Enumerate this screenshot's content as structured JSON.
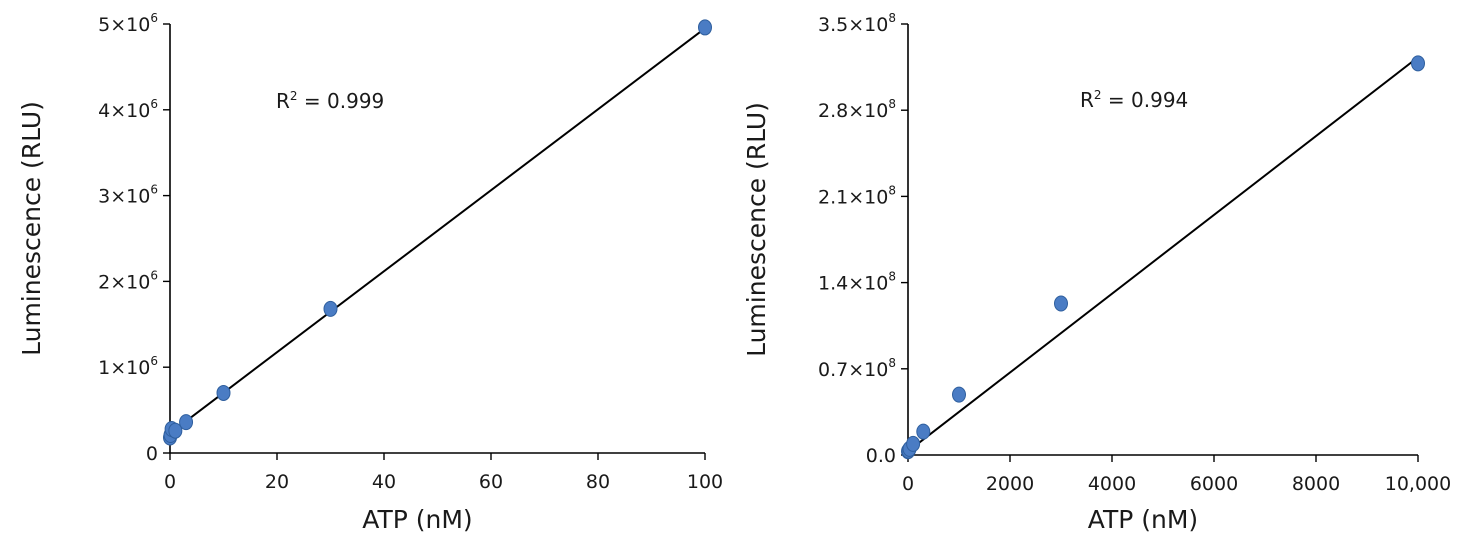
{
  "chart_data": [
    {
      "type": "scatter",
      "xlabel": "ATP (nM)",
      "ylabel": "Luminescence (RLU)",
      "xlim": [
        0,
        100
      ],
      "ylim": [
        0,
        5000000
      ],
      "xticks": [
        {
          "value": 0,
          "label": "0"
        },
        {
          "value": 20,
          "label": "20"
        },
        {
          "value": 40,
          "label": "40"
        },
        {
          "value": 60,
          "label": "60"
        },
        {
          "value": 80,
          "label": "80"
        },
        {
          "value": 100,
          "label": "100"
        }
      ],
      "yticks": [
        {
          "value": 0,
          "mantissa": "0",
          "exponent": ""
        },
        {
          "value": 1000000,
          "mantissa": "1×10",
          "exponent": "6"
        },
        {
          "value": 2000000,
          "mantissa": "2×10",
          "exponent": "6"
        },
        {
          "value": 3000000,
          "mantissa": "3×10",
          "exponent": "6"
        },
        {
          "value": 4000000,
          "mantissa": "4×10",
          "exponent": "6"
        },
        {
          "value": 5000000,
          "mantissa": "5×10",
          "exponent": "6"
        }
      ],
      "points": [
        {
          "x": 0,
          "y": 180000
        },
        {
          "x": 0.1,
          "y": 210000
        },
        {
          "x": 0.3,
          "y": 280000
        },
        {
          "x": 1,
          "y": 260000
        },
        {
          "x": 3,
          "y": 360000
        },
        {
          "x": 10,
          "y": 700000
        },
        {
          "x": 30,
          "y": 1680000
        },
        {
          "x": 100,
          "y": 4960000
        }
      ],
      "trendline": {
        "x": [
          0,
          100
        ],
        "y": [
          230000,
          4950000
        ]
      },
      "annotation": {
        "base": "R",
        "exponent": "2",
        "text": " = 0.999"
      },
      "marker_color": "#4a7cc4",
      "marker_edge": "#2f5f9e",
      "line_color": "#000000"
    },
    {
      "type": "scatter",
      "xlabel": "ATP (nM)",
      "ylabel": "Luminescence (RLU)",
      "xlim": [
        0,
        10000
      ],
      "ylim": [
        0,
        350000000
      ],
      "xticks": [
        {
          "value": 0,
          "label": "0"
        },
        {
          "value": 2000,
          "label": "2000"
        },
        {
          "value": 4000,
          "label": "4000"
        },
        {
          "value": 6000,
          "label": "6000"
        },
        {
          "value": 8000,
          "label": "8000"
        },
        {
          "value": 10000,
          "label": "10,000"
        }
      ],
      "yticks": [
        {
          "value": 0,
          "mantissa": "0.0",
          "exponent": ""
        },
        {
          "value": 70000000,
          "mantissa": "0.7×10",
          "exponent": "8"
        },
        {
          "value": 140000000,
          "mantissa": "1.4×10",
          "exponent": "8"
        },
        {
          "value": 210000000,
          "mantissa": "2.1×10",
          "exponent": "8"
        },
        {
          "value": 280000000,
          "mantissa": "2.8×10",
          "exponent": "8"
        },
        {
          "value": 350000000,
          "mantissa": "3.5×10",
          "exponent": "8"
        }
      ],
      "points": [
        {
          "x": 0,
          "y": 3000000
        },
        {
          "x": 10,
          "y": 3500000
        },
        {
          "x": 30,
          "y": 5000000
        },
        {
          "x": 100,
          "y": 9000000
        },
        {
          "x": 300,
          "y": 19000000
        },
        {
          "x": 1000,
          "y": 49000000
        },
        {
          "x": 3000,
          "y": 123000000
        },
        {
          "x": 10000,
          "y": 318000000
        }
      ],
      "trendline": {
        "x": [
          0,
          10000
        ],
        "y": [
          3000000,
          323000000
        ]
      },
      "annotation": {
        "base": "R",
        "exponent": "2",
        "text": " = 0.994"
      },
      "marker_color": "#4a7cc4",
      "marker_edge": "#2f5f9e",
      "line_color": "#000000"
    }
  ]
}
